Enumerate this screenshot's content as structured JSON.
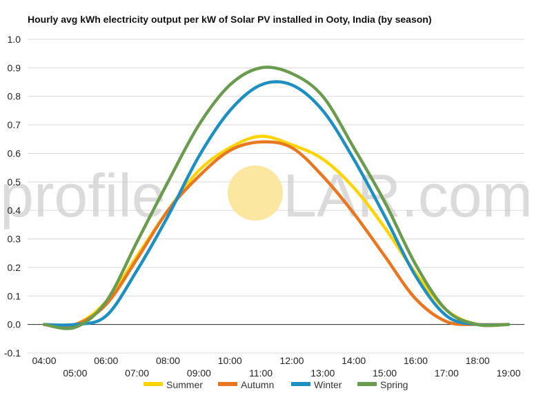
{
  "chart_data": {
    "type": "line",
    "title": "Hourly avg kWh electricity output per kW of Solar PV installed in Ooty, India (by season)",
    "xlabel": "",
    "ylabel": "",
    "ylim": [
      -0.1,
      1.0
    ],
    "yticks": [
      "-0.1",
      "0.0",
      "0.1",
      "0.2",
      "0.3",
      "0.4",
      "0.5",
      "0.6",
      "0.7",
      "0.8",
      "0.9",
      "1.0"
    ],
    "x": [
      "04:00",
      "05:00",
      "06:00",
      "07:00",
      "08:00",
      "09:00",
      "10:00",
      "11:00",
      "12:00",
      "13:00",
      "14:00",
      "15:00",
      "16:00",
      "17:00",
      "18:00",
      "19:00"
    ],
    "grid": true,
    "legend_position": "bottom",
    "series": [
      {
        "name": "Summer",
        "color": "#FFD400",
        "values": [
          0.0,
          0.0,
          0.08,
          0.24,
          0.4,
          0.54,
          0.62,
          0.66,
          0.63,
          0.58,
          0.48,
          0.34,
          0.18,
          0.05,
          0.0,
          0.0
        ]
      },
      {
        "name": "Autumn",
        "color": "#E87722",
        "values": [
          0.0,
          0.0,
          0.07,
          0.23,
          0.4,
          0.52,
          0.61,
          0.64,
          0.62,
          0.52,
          0.39,
          0.24,
          0.09,
          0.01,
          0.0,
          0.0
        ]
      },
      {
        "name": "Winter",
        "color": "#1F8FC2",
        "values": [
          0.0,
          0.0,
          0.03,
          0.19,
          0.38,
          0.59,
          0.75,
          0.84,
          0.84,
          0.75,
          0.58,
          0.38,
          0.17,
          0.03,
          0.0,
          0.0
        ]
      },
      {
        "name": "Spring",
        "color": "#6A9B4E",
        "values": [
          0.0,
          -0.01,
          0.08,
          0.29,
          0.5,
          0.7,
          0.84,
          0.9,
          0.88,
          0.8,
          0.62,
          0.43,
          0.21,
          0.05,
          0.0,
          0.0
        ]
      }
    ],
    "watermark": {
      "left": "profile",
      "right": "LAR.com",
      "sun_color": "#FCE7A0"
    }
  }
}
